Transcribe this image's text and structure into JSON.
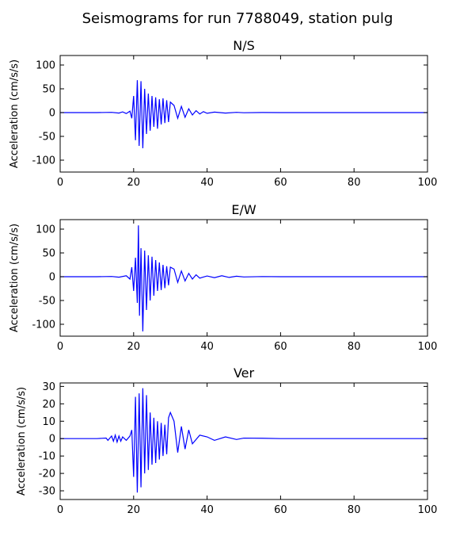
{
  "figure": {
    "suptitle": "Seismograms for run 7788049, station pulg"
  },
  "chart_data": [
    {
      "type": "line",
      "title": "N/S",
      "xlabel": "",
      "ylabel": "Acceleration (cm/s/s)",
      "xlim": [
        0,
        100
      ],
      "ylim": [
        -125,
        120
      ],
      "xticks": [
        0,
        20,
        40,
        60,
        80,
        100
      ],
      "yticks": [
        -100,
        -50,
        0,
        50,
        100
      ],
      "grid": false,
      "color": "#0000ff",
      "series": [
        {
          "x": [
            0,
            10,
            14,
            16,
            17,
            18,
            19,
            19.5,
            20,
            20.5,
            21,
            21.5,
            22,
            22.5,
            23,
            23.5,
            24,
            24.5,
            25,
            25.5,
            26,
            26.5,
            27,
            27.5,
            28,
            28.5,
            29,
            29.5,
            30,
            31,
            32,
            33,
            34,
            35,
            36,
            37,
            38,
            39,
            40,
            42,
            45,
            48,
            50,
            55,
            60,
            70,
            80,
            90,
            100
          ],
          "y": [
            0,
            0,
            0.5,
            -1,
            1.5,
            -2,
            3,
            -12,
            35,
            -58,
            68,
            -70,
            66,
            -75,
            50,
            -45,
            40,
            -38,
            35,
            -30,
            32,
            -34,
            28,
            -25,
            30,
            -22,
            26,
            -20,
            22,
            15,
            -12,
            13,
            -10,
            8,
            -5,
            4,
            -3,
            2,
            -1.5,
            1,
            -1,
            0.5,
            -0.3,
            0.2,
            0,
            0,
            0,
            0,
            0
          ]
        }
      ]
    },
    {
      "type": "line",
      "title": "E/W",
      "xlabel": "",
      "ylabel": "Acceleration (cm/s/s)",
      "xlim": [
        0,
        100
      ],
      "ylim": [
        -125,
        120
      ],
      "xticks": [
        0,
        20,
        40,
        60,
        80,
        100
      ],
      "yticks": [
        -100,
        -50,
        0,
        50,
        100
      ],
      "grid": false,
      "color": "#0000ff",
      "series": [
        {
          "x": [
            0,
            10,
            14,
            16,
            18,
            19,
            19.5,
            20,
            20.5,
            21,
            21.3,
            21.6,
            22,
            22.5,
            23,
            23.5,
            24,
            24.5,
            25,
            25.5,
            26,
            26.5,
            27,
            27.5,
            28,
            28.5,
            29,
            29.5,
            30,
            31,
            32,
            33,
            34,
            35,
            36,
            37,
            38,
            40,
            42,
            44,
            46,
            48,
            50,
            55,
            60,
            70,
            80,
            90,
            100
          ],
          "y": [
            0,
            0,
            0.5,
            -1,
            2,
            -5,
            20,
            -30,
            40,
            -55,
            108,
            -82,
            60,
            -115,
            55,
            -70,
            45,
            -50,
            42,
            -40,
            35,
            -30,
            30,
            -28,
            25,
            -24,
            22,
            -18,
            20,
            16,
            -12,
            12,
            -9,
            7,
            -5,
            4,
            -3,
            1.5,
            -2,
            2,
            -1.5,
            1,
            -0.5,
            0.3,
            0,
            0,
            0,
            0,
            0
          ]
        }
      ]
    },
    {
      "type": "line",
      "title": "Ver",
      "xlabel": "",
      "ylabel": "Acceleration (cm/s/s)",
      "xlim": [
        0,
        100
      ],
      "ylim": [
        -35,
        32
      ],
      "xticks": [
        0,
        20,
        40,
        60,
        80,
        100
      ],
      "yticks": [
        -30,
        -20,
        -10,
        0,
        10,
        20,
        30
      ],
      "grid": false,
      "color": "#0000ff",
      "series": [
        {
          "x": [
            0,
            10,
            12.5,
            13,
            14,
            14.5,
            15,
            15.5,
            16,
            16.5,
            17,
            18,
            19,
            19.5,
            20,
            20.5,
            21,
            21.5,
            22,
            22.5,
            23,
            23.5,
            24,
            24.5,
            25,
            25.5,
            26,
            26.5,
            27,
            27.5,
            28,
            28.5,
            29,
            29.5,
            30,
            31,
            32,
            33,
            34,
            35,
            36,
            38,
            40,
            42,
            45,
            48,
            50,
            55,
            60,
            70,
            80,
            90,
            100
          ],
          "y": [
            0,
            0,
            0.3,
            -1,
            1.5,
            -1.5,
            2,
            -2,
            1.5,
            -1.5,
            1,
            -1,
            1.5,
            5,
            -22,
            24,
            -31,
            26,
            -28,
            29,
            -20,
            25,
            -18,
            15,
            -15,
            12,
            -14,
            10,
            -12,
            9,
            -10,
            8,
            -9,
            12,
            15,
            10,
            -8,
            7,
            -6,
            5,
            -3,
            2,
            1,
            -1,
            1,
            -0.5,
            0.3,
            0.2,
            0,
            0,
            0,
            0,
            0
          ]
        }
      ]
    }
  ]
}
